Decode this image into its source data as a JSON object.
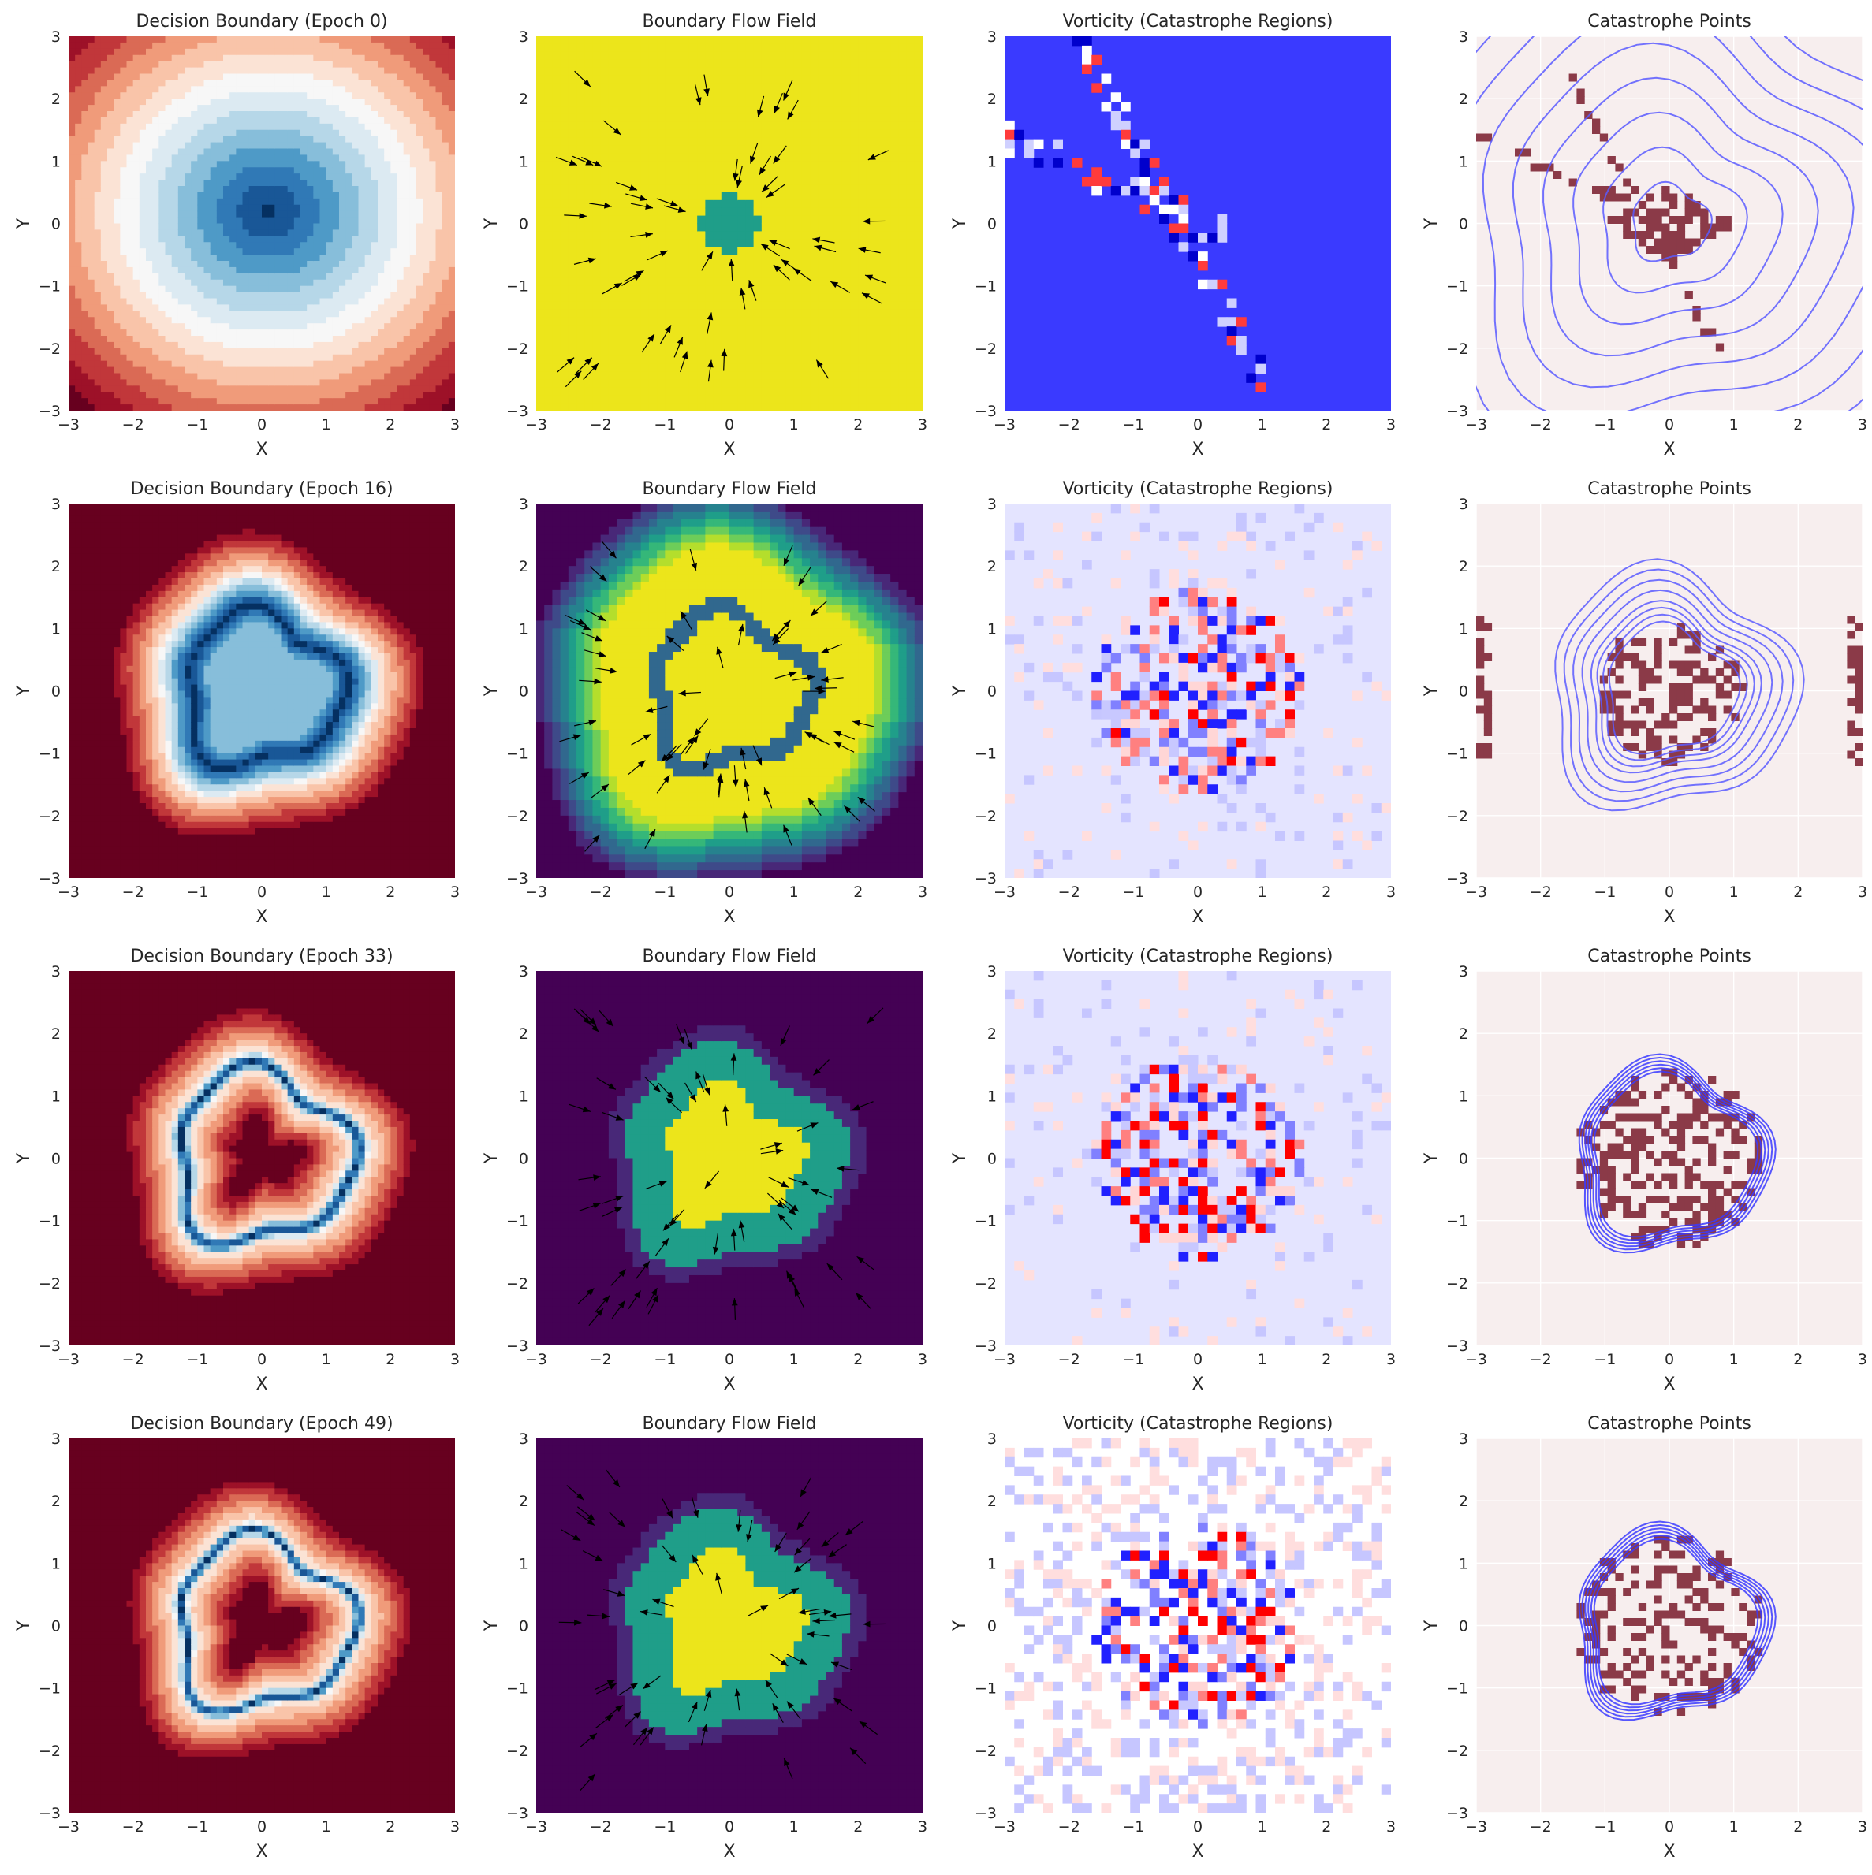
{
  "chart_data": {
    "type": "heatmap",
    "layout": {
      "rows": 4,
      "cols": 4
    },
    "axes": {
      "xlabel": "X",
      "ylabel": "Y",
      "xlim": [
        -3,
        3
      ],
      "ylim": [
        -3,
        3
      ],
      "ticks": [
        -3,
        -2,
        -1,
        0,
        1,
        2,
        3
      ],
      "tick_labels": [
        "−3",
        "−2",
        "−1",
        "0",
        "1",
        "2",
        "3"
      ],
      "grid": true
    },
    "epochs": [
      0,
      16,
      33,
      49
    ],
    "column_titles": {
      "flow": "Boundary Flow Field",
      "vorticity": "Vorticity (Catastrophe Regions)",
      "points": "Catastrophe Points"
    },
    "panels": [
      {
        "row": 0,
        "col": 0,
        "kind": "boundary",
        "title": "Decision Boundary (Epoch 0)",
        "colormap": "RdBu",
        "ring_radius": 0.0,
        "ring_width": 1.6
      },
      {
        "row": 0,
        "col": 1,
        "kind": "flow",
        "title": "Boundary Flow Field",
        "colormap": "viridis",
        "ring_radius": 0.0
      },
      {
        "row": 0,
        "col": 2,
        "kind": "vorticity",
        "title": "Vorticity (Catastrophe Regions)",
        "colormap": "bwr",
        "background": "#3a3aff"
      },
      {
        "row": 0,
        "col": 3,
        "kind": "points",
        "title": "Catastrophe Points",
        "contour_color": "#5a5aff"
      },
      {
        "row": 1,
        "col": 0,
        "kind": "boundary",
        "title": "Decision Boundary (Epoch 16)",
        "colormap": "RdBu",
        "ring_radius": 1.2,
        "ring_width": 0.5
      },
      {
        "row": 1,
        "col": 1,
        "kind": "flow",
        "title": "Boundary Flow Field",
        "colormap": "viridis",
        "ring_radius": 1.2
      },
      {
        "row": 1,
        "col": 2,
        "kind": "vorticity",
        "title": "Vorticity (Catastrophe Regions)",
        "colormap": "bwr",
        "background": "#e4e4ff"
      },
      {
        "row": 1,
        "col": 3,
        "kind": "points",
        "title": "Catastrophe Points",
        "contour_color": "#5a5aff"
      },
      {
        "row": 2,
        "col": 0,
        "kind": "boundary",
        "title": "Decision Boundary (Epoch 33)",
        "colormap": "RdBu",
        "ring_radius": 1.35,
        "ring_width": 0.15
      },
      {
        "row": 2,
        "col": 1,
        "kind": "flow",
        "title": "Boundary Flow Field",
        "colormap": "viridis",
        "ring_radius": 1.35
      },
      {
        "row": 2,
        "col": 2,
        "kind": "vorticity",
        "title": "Vorticity (Catastrophe Regions)",
        "colormap": "bwr",
        "background": "#e4e4ff"
      },
      {
        "row": 2,
        "col": 3,
        "kind": "points",
        "title": "Catastrophe Points",
        "contour_color": "#3a3aff"
      },
      {
        "row": 3,
        "col": 0,
        "kind": "boundary",
        "title": "Decision Boundary (Epoch 49)",
        "colormap": "RdBu",
        "ring_radius": 1.35,
        "ring_width": 0.12
      },
      {
        "row": 3,
        "col": 1,
        "kind": "flow",
        "title": "Boundary Flow Field",
        "colormap": "viridis",
        "ring_radius": 1.35
      },
      {
        "row": 3,
        "col": 2,
        "kind": "vorticity",
        "title": "Vorticity (Catastrophe Regions)",
        "colormap": "bwr",
        "background": "#ffffff"
      },
      {
        "row": 3,
        "col": 3,
        "kind": "points",
        "title": "Catastrophe Points",
        "contour_color": "#3a3aff"
      }
    ]
  }
}
